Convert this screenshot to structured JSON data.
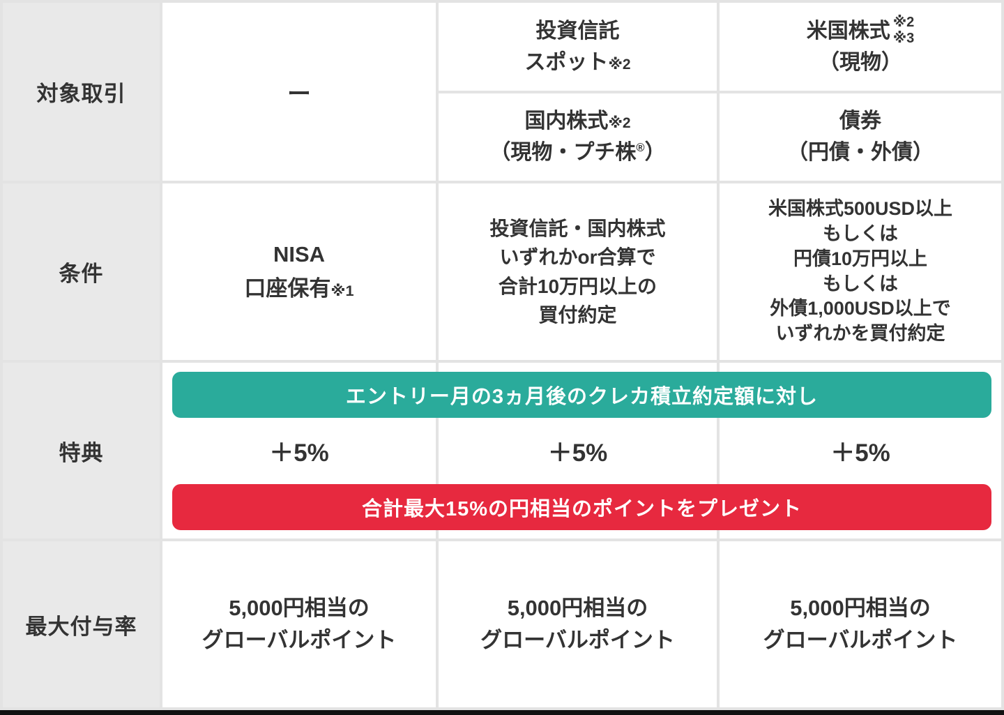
{
  "colors": {
    "teal_banner": "#2aab9b",
    "red_banner": "#e7293f",
    "header_cell_bg": "#e9e9e9",
    "grid_line": "#e3e3e3",
    "text": "#333333",
    "banner_text": "#ffffff",
    "bottom_bar": "#111111"
  },
  "row_headers": [
    "対象取引",
    "条件",
    "特典",
    "最大付与率"
  ],
  "row1": {
    "dash_cell": "ー",
    "fund_cell": {
      "line1": "投資信託",
      "line2": "スポット",
      "line2_note": "※2"
    },
    "domestic_cell": {
      "line1": "国内株式",
      "line1_note": "※2",
      "line2_pre": "（現物・プチ株",
      "line2_reg": "®",
      "line2_post": "）"
    },
    "us_cell": {
      "line1": "米国株式",
      "note1": "※2",
      "note2": "※3",
      "line2": "（現物）"
    },
    "bond_cell": {
      "line1": "債券",
      "line2": "（円債・外債）"
    }
  },
  "row2": {
    "nisa_cell": {
      "line1": "NISA",
      "line2": "口座保有",
      "line2_note": "※1"
    },
    "fund_condition": [
      "投資信託・国内株式",
      "いずれかor合算で",
      "合計10万円以上の",
      "買付約定"
    ],
    "us_condition": [
      "米国株式500USD以上",
      "もしくは",
      "円債10万円以上",
      "もしくは",
      "外債1,000USD以上で",
      "いずれかを買付約定"
    ]
  },
  "row3": {
    "teal_banner": "エントリー月の3ヵ月後のクレカ積立約定額に対し",
    "plus_values": [
      "＋5%",
      "＋5%",
      "＋5%"
    ],
    "red_banner": "合計最大15%の円相当のポイントをプレゼント"
  },
  "row4": {
    "cells": [
      {
        "line1": "5,000円相当の",
        "line2": "グローバルポイント"
      },
      {
        "line1": "5,000円相当の",
        "line2": "グローバルポイント"
      },
      {
        "line1": "5,000円相当の",
        "line2": "グローバルポイント"
      }
    ]
  },
  "chart_data": {
    "type": "table",
    "title": "クレカ積立ポイントキャンペーン比較表",
    "rows": [
      {
        "header": "対象取引",
        "cells": [
          "ー",
          "投資信託 スポット※2 ／ 国内株式※2（現物・プチ株®）",
          "米国株式※2※3（現物） ／ 債券（円債・外債）"
        ]
      },
      {
        "header": "条件",
        "cells": [
          "NISA 口座保有※1",
          "投資信託・国内株式いずれかor合算で合計10万円以上の買付約定",
          "米国株式500USD以上もしくは円債10万円以上もしくは外債1,000USD以上でいずれかを買付約定"
        ]
      },
      {
        "header": "特典",
        "banner_top": "エントリー月の3ヵ月後のクレカ積立約定額に対し",
        "cells": [
          "＋5%",
          "＋5%",
          "＋5%"
        ],
        "banner_bottom": "合計最大15%の円相当のポイントをプレゼント"
      },
      {
        "header": "最大付与率",
        "cells": [
          "5,000円相当のグローバルポイント",
          "5,000円相当のグローバルポイント",
          "5,000円相当のグローバルポイント"
        ]
      }
    ]
  }
}
